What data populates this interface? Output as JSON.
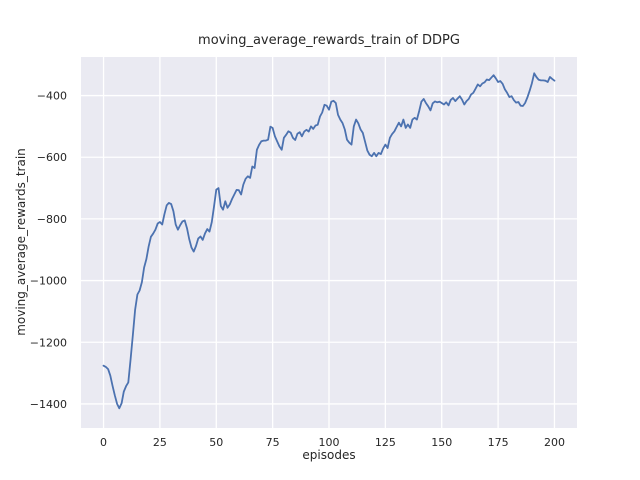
{
  "figure": {
    "title": "moving_average_rewards_train of DDPG",
    "xlabel": "episodes",
    "ylabel": "moving_average_rewards_train"
  },
  "chart_data": {
    "type": "line",
    "title": "moving_average_rewards_train of DDPG",
    "xlabel": "episodes",
    "ylabel": "moving_average_rewards_train",
    "grid": true,
    "legend": false,
    "xlim": [
      -10,
      210
    ],
    "ylim": [
      -1478,
      -275
    ],
    "xticks": {
      "values": [
        0,
        25,
        50,
        75,
        100,
        125,
        150,
        175,
        200
      ],
      "labels": [
        "0",
        "25",
        "50",
        "75",
        "100",
        "125",
        "150",
        "175",
        "200"
      ]
    },
    "yticks": {
      "values": [
        -400,
        -600,
        -800,
        -1000,
        -1200,
        -1400
      ],
      "labels": [
        "−400",
        "−600",
        "−800",
        "−1000",
        "−1200",
        "−1400"
      ]
    },
    "style": {
      "axes_bg": "#eaeaf2",
      "grid_color": "#ffffff",
      "line_color": "#4c72b0",
      "text_color": "#262626"
    },
    "series": [
      {
        "name": "moving_average_rewards_train",
        "color": "#4c72b0",
        "x": [
          0,
          1,
          2,
          3,
          4,
          5,
          6,
          7,
          8,
          9,
          10,
          11,
          12,
          13,
          14,
          15,
          16,
          17,
          18,
          19,
          20,
          21,
          22,
          23,
          24,
          25,
          26,
          27,
          28,
          29,
          30,
          31,
          32,
          33,
          34,
          35,
          36,
          37,
          38,
          39,
          40,
          41,
          42,
          43,
          44,
          45,
          46,
          47,
          48,
          49,
          50,
          51,
          52,
          53,
          54,
          55,
          56,
          57,
          58,
          59,
          60,
          61,
          62,
          63,
          64,
          65,
          66,
          67,
          68,
          69,
          70,
          71,
          72,
          73,
          74,
          75,
          76,
          77,
          78,
          79,
          80,
          81,
          82,
          83,
          84,
          85,
          86,
          87,
          88,
          89,
          90,
          91,
          92,
          93,
          94,
          95,
          96,
          97,
          98,
          99,
          100,
          101,
          102,
          103,
          104,
          105,
          106,
          107,
          108,
          109,
          110,
          111,
          112,
          113,
          114,
          115,
          116,
          117,
          118,
          119,
          120,
          121,
          122,
          123,
          124,
          125,
          126,
          127,
          128,
          129,
          130,
          131,
          132,
          133,
          134,
          135,
          136,
          137,
          138,
          139,
          140,
          141,
          142,
          143,
          144,
          145,
          146,
          147,
          148,
          149,
          150,
          151,
          152,
          153,
          154,
          155,
          156,
          157,
          158,
          159,
          160,
          161,
          162,
          163,
          164,
          165,
          166,
          167,
          168,
          169,
          170,
          171,
          172,
          173,
          174,
          175,
          176,
          177,
          178,
          179,
          180,
          181,
          182,
          183,
          184,
          185,
          186,
          187,
          188,
          189,
          190,
          191,
          192,
          193,
          194,
          195,
          196,
          197,
          198,
          199,
          200
        ],
        "y": [
          -1276,
          -1280,
          -1287,
          -1308,
          -1342,
          -1372,
          -1400,
          -1414,
          -1398,
          -1360,
          -1342,
          -1330,
          -1255,
          -1175,
          -1095,
          -1045,
          -1032,
          -1005,
          -958,
          -930,
          -890,
          -858,
          -848,
          -835,
          -815,
          -810,
          -818,
          -785,
          -756,
          -748,
          -752,
          -775,
          -818,
          -835,
          -820,
          -808,
          -805,
          -830,
          -865,
          -893,
          -906,
          -888,
          -864,
          -857,
          -868,
          -847,
          -833,
          -841,
          -810,
          -760,
          -705,
          -700,
          -758,
          -770,
          -743,
          -764,
          -753,
          -735,
          -721,
          -706,
          -707,
          -721,
          -689,
          -670,
          -662,
          -667,
          -630,
          -635,
          -576,
          -560,
          -548,
          -546,
          -546,
          -543,
          -501,
          -505,
          -532,
          -548,
          -565,
          -576,
          -537,
          -527,
          -516,
          -520,
          -537,
          -544,
          -524,
          -519,
          -532,
          -517,
          -511,
          -517,
          -500,
          -508,
          -497,
          -495,
          -468,
          -455,
          -430,
          -433,
          -446,
          -420,
          -417,
          -424,
          -462,
          -478,
          -489,
          -510,
          -543,
          -553,
          -559,
          -500,
          -478,
          -490,
          -510,
          -521,
          -550,
          -578,
          -592,
          -597,
          -586,
          -597,
          -586,
          -590,
          -572,
          -559,
          -570,
          -537,
          -525,
          -516,
          -502,
          -488,
          -500,
          -478,
          -505,
          -494,
          -505,
          -478,
          -472,
          -478,
          -450,
          -420,
          -411,
          -424,
          -435,
          -448,
          -425,
          -419,
          -422,
          -420,
          -424,
          -429,
          -422,
          -432,
          -414,
          -408,
          -418,
          -410,
          -402,
          -413,
          -429,
          -418,
          -411,
          -397,
          -391,
          -378,
          -364,
          -370,
          -361,
          -357,
          -348,
          -350,
          -342,
          -334,
          -344,
          -356,
          -353,
          -362,
          -380,
          -391,
          -405,
          -402,
          -415,
          -423,
          -421,
          -433,
          -434,
          -424,
          -406,
          -384,
          -360,
          -328,
          -340,
          -349,
          -351,
          -351,
          -352,
          -356,
          -340,
          -346,
          -352
        ]
      }
    ]
  }
}
